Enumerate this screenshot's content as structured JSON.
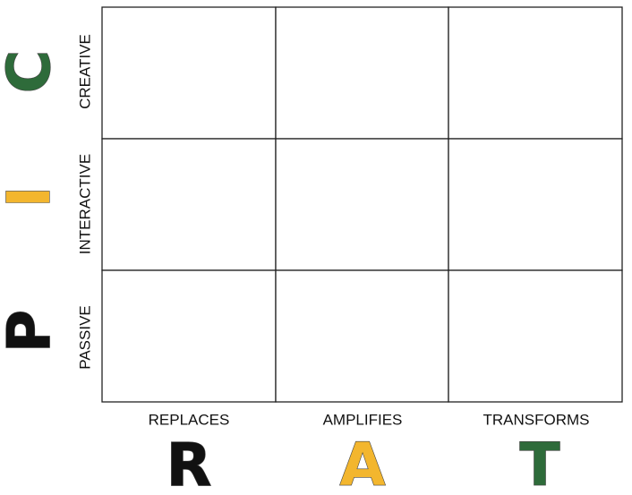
{
  "rows": [
    {
      "letter": "C",
      "label": "CREATIVE"
    },
    {
      "letter": "I",
      "label": "INTERACTIVE"
    },
    {
      "letter": "P",
      "label": "PASSIVE"
    }
  ],
  "columns": [
    {
      "label": "REPLACES",
      "letter": "R"
    },
    {
      "label": "AMPLIFIES",
      "letter": "A"
    },
    {
      "label": "TRANSFORMS",
      "letter": "T"
    }
  ]
}
